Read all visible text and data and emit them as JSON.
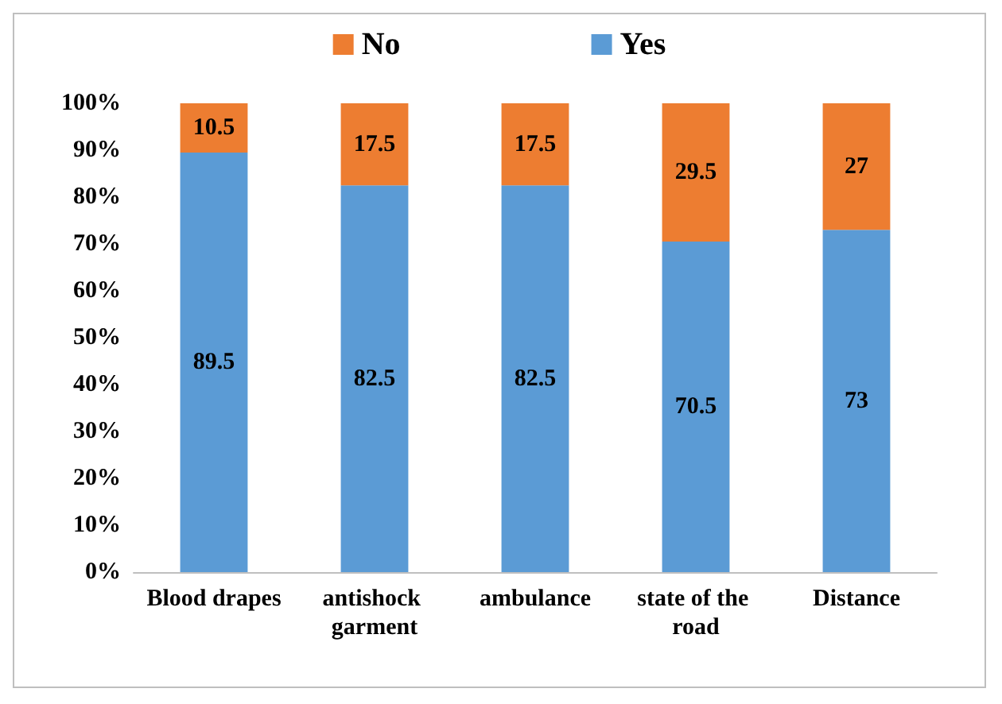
{
  "chart_data": {
    "type": "bar",
    "stacked": true,
    "categories": [
      "Blood drapes",
      "antishock garment",
      "ambulance",
      "state of the road",
      "Distance"
    ],
    "series": [
      {
        "name": "Yes",
        "color": "#5b9bd5",
        "values": [
          89.5,
          82.5,
          82.5,
          70.5,
          73
        ]
      },
      {
        "name": "No",
        "color": "#ed7d31",
        "values": [
          10.5,
          17.5,
          17.5,
          29.5,
          27
        ]
      }
    ],
    "ylim": [
      0,
      100
    ],
    "yticks": [
      {
        "value": 0,
        "label": "0%"
      },
      {
        "value": 10,
        "label": "10%"
      },
      {
        "value": 20,
        "label": "20%"
      },
      {
        "value": 30,
        "label": "30%"
      },
      {
        "value": 40,
        "label": "40%"
      },
      {
        "value": 50,
        "label": "50%"
      },
      {
        "value": 60,
        "label": "60%"
      },
      {
        "value": 70,
        "label": "70%"
      },
      {
        "value": 80,
        "label": "80%"
      },
      {
        "value": 90,
        "label": "90%"
      },
      {
        "value": 100,
        "label": "100%"
      }
    ],
    "data_labels": true,
    "legend": "top",
    "grid": false
  }
}
